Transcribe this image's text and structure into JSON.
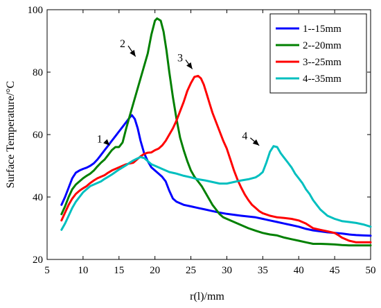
{
  "chart_data": {
    "type": "line",
    "xlabel": "r(l)/mm",
    "ylabel": "Surface Temperature/°C",
    "xlim": [
      5,
      50
    ],
    "ylim": [
      20,
      100
    ],
    "xticks": [
      5,
      10,
      15,
      20,
      25,
      30,
      35,
      40,
      45,
      50
    ],
    "yticks": [
      20,
      40,
      60,
      80,
      100
    ],
    "grid": false,
    "legend_position": "top-right",
    "series": [
      {
        "name": "1--15mm",
        "color": "#0000ff",
        "points": [
          [
            7.0,
            37.5
          ],
          [
            7.5,
            40.0
          ],
          [
            8.0,
            43.0
          ],
          [
            8.5,
            46.0
          ],
          [
            9.0,
            47.8
          ],
          [
            9.5,
            48.5
          ],
          [
            10.0,
            49.0
          ],
          [
            10.5,
            49.4
          ],
          [
            11.0,
            50.0
          ],
          [
            11.5,
            50.8
          ],
          [
            12.0,
            52.0
          ],
          [
            12.5,
            53.5
          ],
          [
            13.0,
            55.0
          ],
          [
            13.5,
            56.5
          ],
          [
            14.0,
            58.0
          ],
          [
            14.5,
            59.5
          ],
          [
            15.0,
            61.0
          ],
          [
            15.5,
            62.5
          ],
          [
            16.0,
            64.0
          ],
          [
            16.5,
            65.5
          ],
          [
            16.8,
            66.2
          ],
          [
            17.2,
            65.0
          ],
          [
            17.6,
            62.0
          ],
          [
            18.0,
            58.0
          ],
          [
            18.5,
            54.0
          ],
          [
            19.0,
            51.5
          ],
          [
            19.5,
            49.5
          ],
          [
            20.0,
            48.5
          ],
          [
            20.5,
            47.5
          ],
          [
            21.0,
            46.5
          ],
          [
            21.5,
            45.0
          ],
          [
            22.0,
            42.0
          ],
          [
            22.5,
            39.5
          ],
          [
            23.0,
            38.5
          ],
          [
            24.0,
            37.5
          ],
          [
            25.0,
            37.0
          ],
          [
            26.0,
            36.5
          ],
          [
            27.0,
            36.0
          ],
          [
            28.0,
            35.5
          ],
          [
            29.0,
            35.0
          ],
          [
            30.0,
            34.6
          ],
          [
            32.0,
            34.0
          ],
          [
            34.0,
            33.5
          ],
          [
            35.0,
            33.0
          ],
          [
            36.0,
            32.5
          ],
          [
            37.0,
            32.0
          ],
          [
            38.0,
            31.5
          ],
          [
            39.0,
            31.0
          ],
          [
            40.0,
            30.5
          ],
          [
            41.0,
            29.8
          ],
          [
            42.0,
            29.3
          ],
          [
            43.0,
            29.0
          ],
          [
            44.0,
            28.7
          ],
          [
            45.0,
            28.5
          ],
          [
            46.0,
            28.3
          ],
          [
            47.0,
            28.0
          ],
          [
            48.0,
            27.8
          ],
          [
            49.0,
            27.7
          ],
          [
            50.0,
            27.6
          ]
        ]
      },
      {
        "name": "2--20mm",
        "color": "#008000",
        "points": [
          [
            7.0,
            34.5
          ],
          [
            7.5,
            37.0
          ],
          [
            8.0,
            40.0
          ],
          [
            8.5,
            42.5
          ],
          [
            9.0,
            44.0
          ],
          [
            9.5,
            45.0
          ],
          [
            10.0,
            46.0
          ],
          [
            10.5,
            46.8
          ],
          [
            11.0,
            47.5
          ],
          [
            11.5,
            48.5
          ],
          [
            12.0,
            49.8
          ],
          [
            12.5,
            51.0
          ],
          [
            13.0,
            52.0
          ],
          [
            13.5,
            53.5
          ],
          [
            14.0,
            55.0
          ],
          [
            14.5,
            56.0
          ],
          [
            15.0,
            56.0
          ],
          [
            15.5,
            57.5
          ],
          [
            16.0,
            62.0
          ],
          [
            16.5,
            66.0
          ],
          [
            17.0,
            70.0
          ],
          [
            17.5,
            74.0
          ],
          [
            18.0,
            78.0
          ],
          [
            18.5,
            82.0
          ],
          [
            19.0,
            86.0
          ],
          [
            19.5,
            92.0
          ],
          [
            20.0,
            96.5
          ],
          [
            20.3,
            97.2
          ],
          [
            20.8,
            96.5
          ],
          [
            21.2,
            93.0
          ],
          [
            21.6,
            87.0
          ],
          [
            22.0,
            80.0
          ],
          [
            22.5,
            72.0
          ],
          [
            23.0,
            65.0
          ],
          [
            23.5,
            59.0
          ],
          [
            24.0,
            55.0
          ],
          [
            24.5,
            51.5
          ],
          [
            25.0,
            48.5
          ],
          [
            25.5,
            46.5
          ],
          [
            26.0,
            45.0
          ],
          [
            26.5,
            43.5
          ],
          [
            27.0,
            41.5
          ],
          [
            27.5,
            39.5
          ],
          [
            28.0,
            37.5
          ],
          [
            28.5,
            36.0
          ],
          [
            29.0,
            34.5
          ],
          [
            29.5,
            33.5
          ],
          [
            30.0,
            33.0
          ],
          [
            31.0,
            32.0
          ],
          [
            32.0,
            31.0
          ],
          [
            33.0,
            30.0
          ],
          [
            34.0,
            29.2
          ],
          [
            35.0,
            28.5
          ],
          [
            36.0,
            28.0
          ],
          [
            37.0,
            27.7
          ],
          [
            38.0,
            27.0
          ],
          [
            39.0,
            26.5
          ],
          [
            40.0,
            26.0
          ],
          [
            41.0,
            25.5
          ],
          [
            42.0,
            25.0
          ],
          [
            43.0,
            25.0
          ],
          [
            44.0,
            24.9
          ],
          [
            45.0,
            24.8
          ],
          [
            46.0,
            24.6
          ],
          [
            47.0,
            24.5
          ],
          [
            48.0,
            24.5
          ],
          [
            49.0,
            24.5
          ],
          [
            50.0,
            24.5
          ]
        ]
      },
      {
        "name": "3--25mm",
        "color": "#ff0000",
        "points": [
          [
            7.0,
            32.5
          ],
          [
            7.5,
            35.0
          ],
          [
            8.0,
            37.5
          ],
          [
            8.5,
            39.5
          ],
          [
            9.0,
            41.0
          ],
          [
            9.5,
            42.0
          ],
          [
            10.0,
            42.8
          ],
          [
            10.5,
            43.5
          ],
          [
            11.0,
            44.5
          ],
          [
            11.5,
            45.3
          ],
          [
            12.0,
            46.0
          ],
          [
            12.5,
            46.5
          ],
          [
            13.0,
            47.0
          ],
          [
            13.5,
            47.8
          ],
          [
            14.0,
            48.5
          ],
          [
            15.0,
            49.5
          ],
          [
            16.0,
            50.5
          ],
          [
            17.0,
            51.0
          ],
          [
            17.5,
            52.0
          ],
          [
            18.0,
            53.0
          ],
          [
            18.5,
            53.8
          ],
          [
            19.0,
            54.2
          ],
          [
            19.5,
            54.3
          ],
          [
            20.0,
            55.0
          ],
          [
            20.5,
            55.5
          ],
          [
            21.0,
            56.5
          ],
          [
            21.5,
            58.0
          ],
          [
            22.0,
            60.0
          ],
          [
            22.5,
            62.0
          ],
          [
            23.0,
            64.5
          ],
          [
            23.5,
            67.5
          ],
          [
            24.0,
            70.5
          ],
          [
            24.5,
            74.0
          ],
          [
            25.0,
            76.5
          ],
          [
            25.5,
            78.5
          ],
          [
            26.0,
            78.8
          ],
          [
            26.4,
            78.0
          ],
          [
            26.8,
            76.0
          ],
          [
            27.2,
            73.0
          ],
          [
            27.6,
            70.0
          ],
          [
            28.0,
            67.0
          ],
          [
            28.5,
            64.0
          ],
          [
            29.0,
            61.0
          ],
          [
            29.5,
            58.0
          ],
          [
            30.0,
            55.5
          ],
          [
            30.5,
            52.0
          ],
          [
            31.0,
            48.5
          ],
          [
            31.5,
            45.5
          ],
          [
            32.0,
            43.0
          ],
          [
            32.5,
            40.8
          ],
          [
            33.0,
            39.0
          ],
          [
            33.5,
            37.5
          ],
          [
            34.0,
            36.5
          ],
          [
            34.5,
            35.5
          ],
          [
            35.0,
            34.8
          ],
          [
            36.0,
            34.0
          ],
          [
            37.0,
            33.5
          ],
          [
            38.0,
            33.3
          ],
          [
            39.0,
            33.0
          ],
          [
            40.0,
            32.5
          ],
          [
            41.0,
            31.5
          ],
          [
            42.0,
            30.0
          ],
          [
            43.0,
            29.5
          ],
          [
            44.0,
            29.0
          ],
          [
            45.0,
            28.5
          ],
          [
            45.5,
            27.8
          ],
          [
            46.0,
            27.0
          ],
          [
            47.0,
            26.0
          ],
          [
            48.0,
            25.5
          ],
          [
            49.0,
            25.5
          ],
          [
            50.0,
            25.5
          ]
        ]
      },
      {
        "name": "4--35mm",
        "color": "#00bfbf",
        "points": [
          [
            7.0,
            29.5
          ],
          [
            7.5,
            31.5
          ],
          [
            8.0,
            34.0
          ],
          [
            8.5,
            36.5
          ],
          [
            9.0,
            38.5
          ],
          [
            9.5,
            40.0
          ],
          [
            10.0,
            41.5
          ],
          [
            10.5,
            42.5
          ],
          [
            11.0,
            43.5
          ],
          [
            11.5,
            44.0
          ],
          [
            12.0,
            44.5
          ],
          [
            12.5,
            45.0
          ],
          [
            13.0,
            45.8
          ],
          [
            13.5,
            46.5
          ],
          [
            14.0,
            47.2
          ],
          [
            14.5,
            48.0
          ],
          [
            15.0,
            48.8
          ],
          [
            15.5,
            49.5
          ],
          [
            16.0,
            50.2
          ],
          [
            16.5,
            51.0
          ],
          [
            17.0,
            51.7
          ],
          [
            17.5,
            52.3
          ],
          [
            18.0,
            52.8
          ],
          [
            18.5,
            52.5
          ],
          [
            19.0,
            51.5
          ],
          [
            19.5,
            50.5
          ],
          [
            20.0,
            50.0
          ],
          [
            20.5,
            49.5
          ],
          [
            21.0,
            49.0
          ],
          [
            21.5,
            48.5
          ],
          [
            22.0,
            48.0
          ],
          [
            23.0,
            47.5
          ],
          [
            24.0,
            46.8
          ],
          [
            25.0,
            46.3
          ],
          [
            26.0,
            45.7
          ],
          [
            27.0,
            45.3
          ],
          [
            28.0,
            44.8
          ],
          [
            29.0,
            44.3
          ],
          [
            30.0,
            44.3
          ],
          [
            31.0,
            44.8
          ],
          [
            32.0,
            45.3
          ],
          [
            33.0,
            45.7
          ],
          [
            34.0,
            46.3
          ],
          [
            34.5,
            47.0
          ],
          [
            35.0,
            48.0
          ],
          [
            35.5,
            51.0
          ],
          [
            36.0,
            54.5
          ],
          [
            36.5,
            56.3
          ],
          [
            37.0,
            56.0
          ],
          [
            37.5,
            54.0
          ],
          [
            38.0,
            52.5
          ],
          [
            38.5,
            51.0
          ],
          [
            39.0,
            49.5
          ],
          [
            39.5,
            47.5
          ],
          [
            40.0,
            46.0
          ],
          [
            40.5,
            44.5
          ],
          [
            41.0,
            42.5
          ],
          [
            41.5,
            41.0
          ],
          [
            42.0,
            39.0
          ],
          [
            42.5,
            37.5
          ],
          [
            43.0,
            36.0
          ],
          [
            43.5,
            35.0
          ],
          [
            44.0,
            34.0
          ],
          [
            45.0,
            33.0
          ],
          [
            46.0,
            32.3
          ],
          [
            47.0,
            32.0
          ],
          [
            48.0,
            31.7
          ],
          [
            49.0,
            31.2
          ],
          [
            50.0,
            30.5
          ]
        ]
      }
    ],
    "annotations": [
      {
        "text": "1",
        "x": 12.3,
        "y": 57.5,
        "arrow_to": [
          13.7,
          56.5
        ]
      },
      {
        "text": "2",
        "x": 15.5,
        "y": 88.0,
        "arrow_to": [
          17.3,
          85.0
        ]
      },
      {
        "text": "3",
        "x": 23.5,
        "y": 83.5,
        "arrow_to": [
          25.2,
          81.0
        ]
      },
      {
        "text": "4",
        "x": 32.5,
        "y": 58.5,
        "arrow_to": [
          34.5,
          56.5
        ]
      }
    ]
  }
}
